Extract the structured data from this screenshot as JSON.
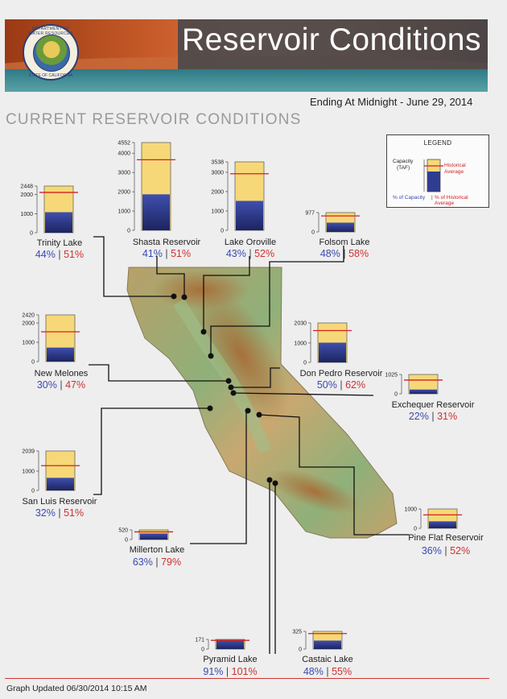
{
  "header": {
    "title": "Reservoir Conditions",
    "seal_top": "DEPARTMENT OF WATER RESOURCES",
    "seal_bottom": "STATE OF CALIFORNIA",
    "date_line": "Ending At Midnight - June 29, 2014",
    "section_title": "CURRENT RESERVOIR CONDITIONS"
  },
  "legend": {
    "title": "LEGEND",
    "capacity": "Capacity",
    "taf": "(TAF)",
    "historical": "Historical",
    "average": "Average",
    "pct_capacity": "% of Capacity",
    "pct_hist_1": "% of Historical",
    "pct_hist_2": "Average"
  },
  "colors": {
    "capacity": "#f7d878",
    "storage": "#303c90",
    "historical": "#d42020",
    "pct_capacity": "#3a4ab0",
    "pct_historical": "#d03030"
  },
  "chart_data": {
    "type": "bar",
    "units": "TAF",
    "reservoirs": [
      {
        "name": "Trinity Lake",
        "capacity": 2448,
        "ticks": [
          2448,
          2000,
          1000,
          0
        ],
        "storage": 1077,
        "historical_average": 2112,
        "pct_capacity": "44%",
        "pct_historical": "51%"
      },
      {
        "name": "Shasta Reservoir",
        "capacity": 4552,
        "ticks": [
          4552,
          4000,
          3000,
          2000,
          1000,
          0
        ],
        "storage": 1866,
        "historical_average": 3660,
        "pct_capacity": "41%",
        "pct_historical": "51%"
      },
      {
        "name": "Lake Oroville",
        "capacity": 3538,
        "ticks": [
          3538,
          3000,
          2000,
          1000,
          0
        ],
        "storage": 1521,
        "historical_average": 2925,
        "pct_capacity": "43%",
        "pct_historical": "52%"
      },
      {
        "name": "Folsom Lake",
        "capacity": 977,
        "ticks": [
          977,
          0
        ],
        "storage": 469,
        "historical_average": 808,
        "pct_capacity": "48%",
        "pct_historical": "58%"
      },
      {
        "name": "New Melones",
        "capacity": 2420,
        "ticks": [
          2420,
          2000,
          1000,
          0
        ],
        "storage": 726,
        "historical_average": 1545,
        "pct_capacity": "30%",
        "pct_historical": "47%"
      },
      {
        "name": "Don Pedro Reservoir",
        "capacity": 2030,
        "ticks": [
          2030,
          1000,
          0
        ],
        "storage": 1015,
        "historical_average": 1637,
        "pct_capacity": "50%",
        "pct_historical": "62%"
      },
      {
        "name": "Exchequer Reservoir",
        "capacity": 1025,
        "ticks": [
          1025,
          0
        ],
        "storage": 226,
        "historical_average": 729,
        "pct_capacity": "22%",
        "pct_historical": "31%"
      },
      {
        "name": "San Luis Reservoir",
        "capacity": 2039,
        "ticks": [
          2039,
          1000,
          0
        ],
        "storage": 652,
        "historical_average": 1279,
        "pct_capacity": "32%",
        "pct_historical": "51%"
      },
      {
        "name": "Millerton Lake",
        "capacity": 520,
        "ticks": [
          520,
          0
        ],
        "storage": 328,
        "historical_average": 415,
        "pct_capacity": "63%",
        "pct_historical": "79%"
      },
      {
        "name": "Pine Flat Reservoir",
        "capacity": 1000,
        "ticks": [
          1000,
          0
        ],
        "storage": 360,
        "historical_average": 692,
        "pct_capacity": "36%",
        "pct_historical": "52%"
      },
      {
        "name": "Pyramid Lake",
        "capacity": 171,
        "ticks": [
          171,
          0
        ],
        "storage": 156,
        "historical_average": 154,
        "pct_capacity": "91%",
        "pct_historical": "101%"
      },
      {
        "name": "Castaic Lake",
        "capacity": 325,
        "ticks": [
          325,
          0
        ],
        "storage": 156,
        "historical_average": 284,
        "pct_capacity": "48%",
        "pct_historical": "55%"
      }
    ]
  },
  "footer": {
    "updated": "Graph Updated 06/30/2014 10:15 AM"
  }
}
